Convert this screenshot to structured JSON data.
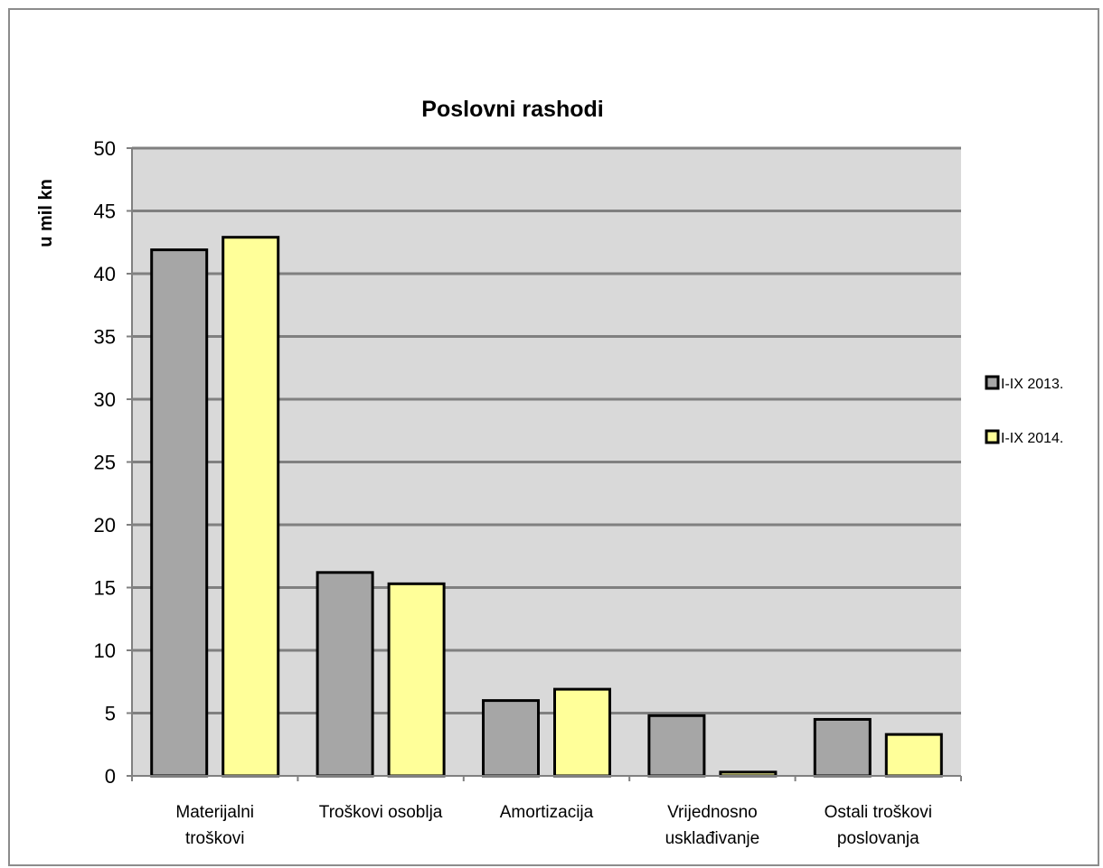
{
  "chart_data": {
    "type": "bar",
    "title": "Poslovni rashodi",
    "xlabel": "",
    "ylabel": "u mil kn",
    "ylim": [
      0,
      50
    ],
    "yticks": [
      0,
      5,
      10,
      15,
      20,
      25,
      30,
      35,
      40,
      45,
      50
    ],
    "grid": true,
    "legend_position": "right",
    "categories": [
      [
        "Materijalni",
        "troškovi"
      ],
      [
        "Troškovi osoblja"
      ],
      [
        "Amortizacija"
      ],
      [
        "Vrijednosno",
        "usklađivanje"
      ],
      [
        "Ostali troškovi",
        "poslovanja"
      ]
    ],
    "series": [
      {
        "name": "I-IX 2013.",
        "color": "#a6a6a6",
        "values": [
          41.9,
          16.2,
          6.0,
          4.8,
          4.5
        ]
      },
      {
        "name": "I-IX 2014.",
        "color": "#ffff99",
        "values": [
          42.9,
          15.3,
          6.9,
          0.3,
          3.3
        ]
      }
    ],
    "colors": {
      "plot_background": "#d9d9d9",
      "gridline": "#808080",
      "bar_outline": "#000000",
      "frame": "#8c8c8c"
    }
  }
}
